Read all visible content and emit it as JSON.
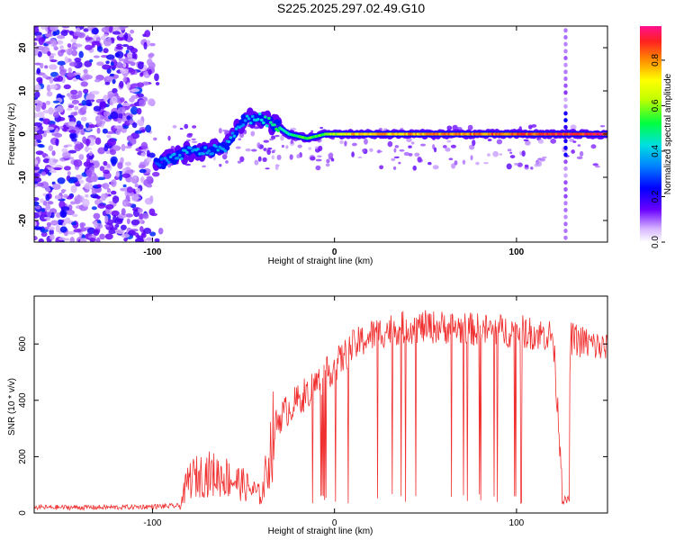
{
  "title": "S225.2025.297.02.49.G10",
  "chart_data": [
    {
      "type": "heatmap",
      "name": "spectrogram",
      "xlabel": "Height of straight line (km)",
      "ylabel": "Frequency (Hz)",
      "xlim": [
        -165,
        150
      ],
      "ylim": [
        -25,
        25
      ],
      "xticks": [
        "-100",
        "0",
        "100"
      ],
      "xtick_values": [
        -100,
        0,
        100
      ],
      "yticks": [
        "20",
        "10",
        "0",
        "-10",
        "-20"
      ],
      "ytick_values": [
        20,
        10,
        0,
        -10,
        -20
      ],
      "colorbar": {
        "label": "Normalized spectral amplitude",
        "ticks": [
          "0.0",
          "0.2",
          "0.4",
          "0.6",
          "0.8"
        ],
        "tick_values": [
          0.0,
          0.2,
          0.4,
          0.6,
          0.8
        ],
        "range": [
          0,
          0.95
        ]
      },
      "signal_track": {
        "x": [
          -98,
          -90,
          -80,
          -70,
          -60,
          -50,
          -42,
          -38,
          -32,
          -25,
          -15,
          -5,
          10,
          50,
          100,
          140,
          150
        ],
        "freq": [
          -7,
          -6,
          -4,
          -4,
          -3,
          3,
          4,
          3,
          2,
          0,
          -1,
          0,
          0,
          0,
          0,
          0,
          0
        ],
        "amplitude": [
          0.3,
          0.4,
          0.4,
          0.4,
          0.4,
          0.4,
          0.45,
          0.5,
          0.55,
          0.5,
          0.6,
          0.6,
          0.8,
          0.85,
          0.9,
          0.95,
          0.95
        ]
      },
      "noise_region": {
        "x": [
          -165,
          -95
        ],
        "freq_range": [
          -25,
          25
        ]
      },
      "spike_x": 127
    },
    {
      "type": "line",
      "name": "snr",
      "xlabel": "Height of straight line (km)",
      "ylabel": "SNR (10 * v/v)",
      "xlim": [
        -165,
        150
      ],
      "ylim": [
        0,
        770
      ],
      "xticks": [
        "-100",
        "0",
        "100"
      ],
      "xtick_values": [
        -100,
        0,
        100
      ],
      "yticks": [
        "0",
        "200",
        "400",
        "600"
      ],
      "ytick_values": [
        0,
        200,
        400,
        600
      ],
      "color": "#f03030",
      "series": [
        {
          "name": "SNR",
          "x": [
            -165,
            -120,
            -85,
            -80,
            -70,
            -60,
            -50,
            -40,
            -33,
            -30,
            -20,
            -10,
            0,
            10,
            20,
            30,
            40,
            60,
            80,
            100,
            120,
            126,
            130,
            140,
            150
          ],
          "y": [
            20,
            20,
            25,
            120,
            140,
            130,
            100,
            60,
            300,
            340,
            400,
            460,
            520,
            590,
            630,
            650,
            660,
            660,
            650,
            645,
            630,
            40,
            620,
            600,
            580
          ]
        }
      ]
    }
  ]
}
